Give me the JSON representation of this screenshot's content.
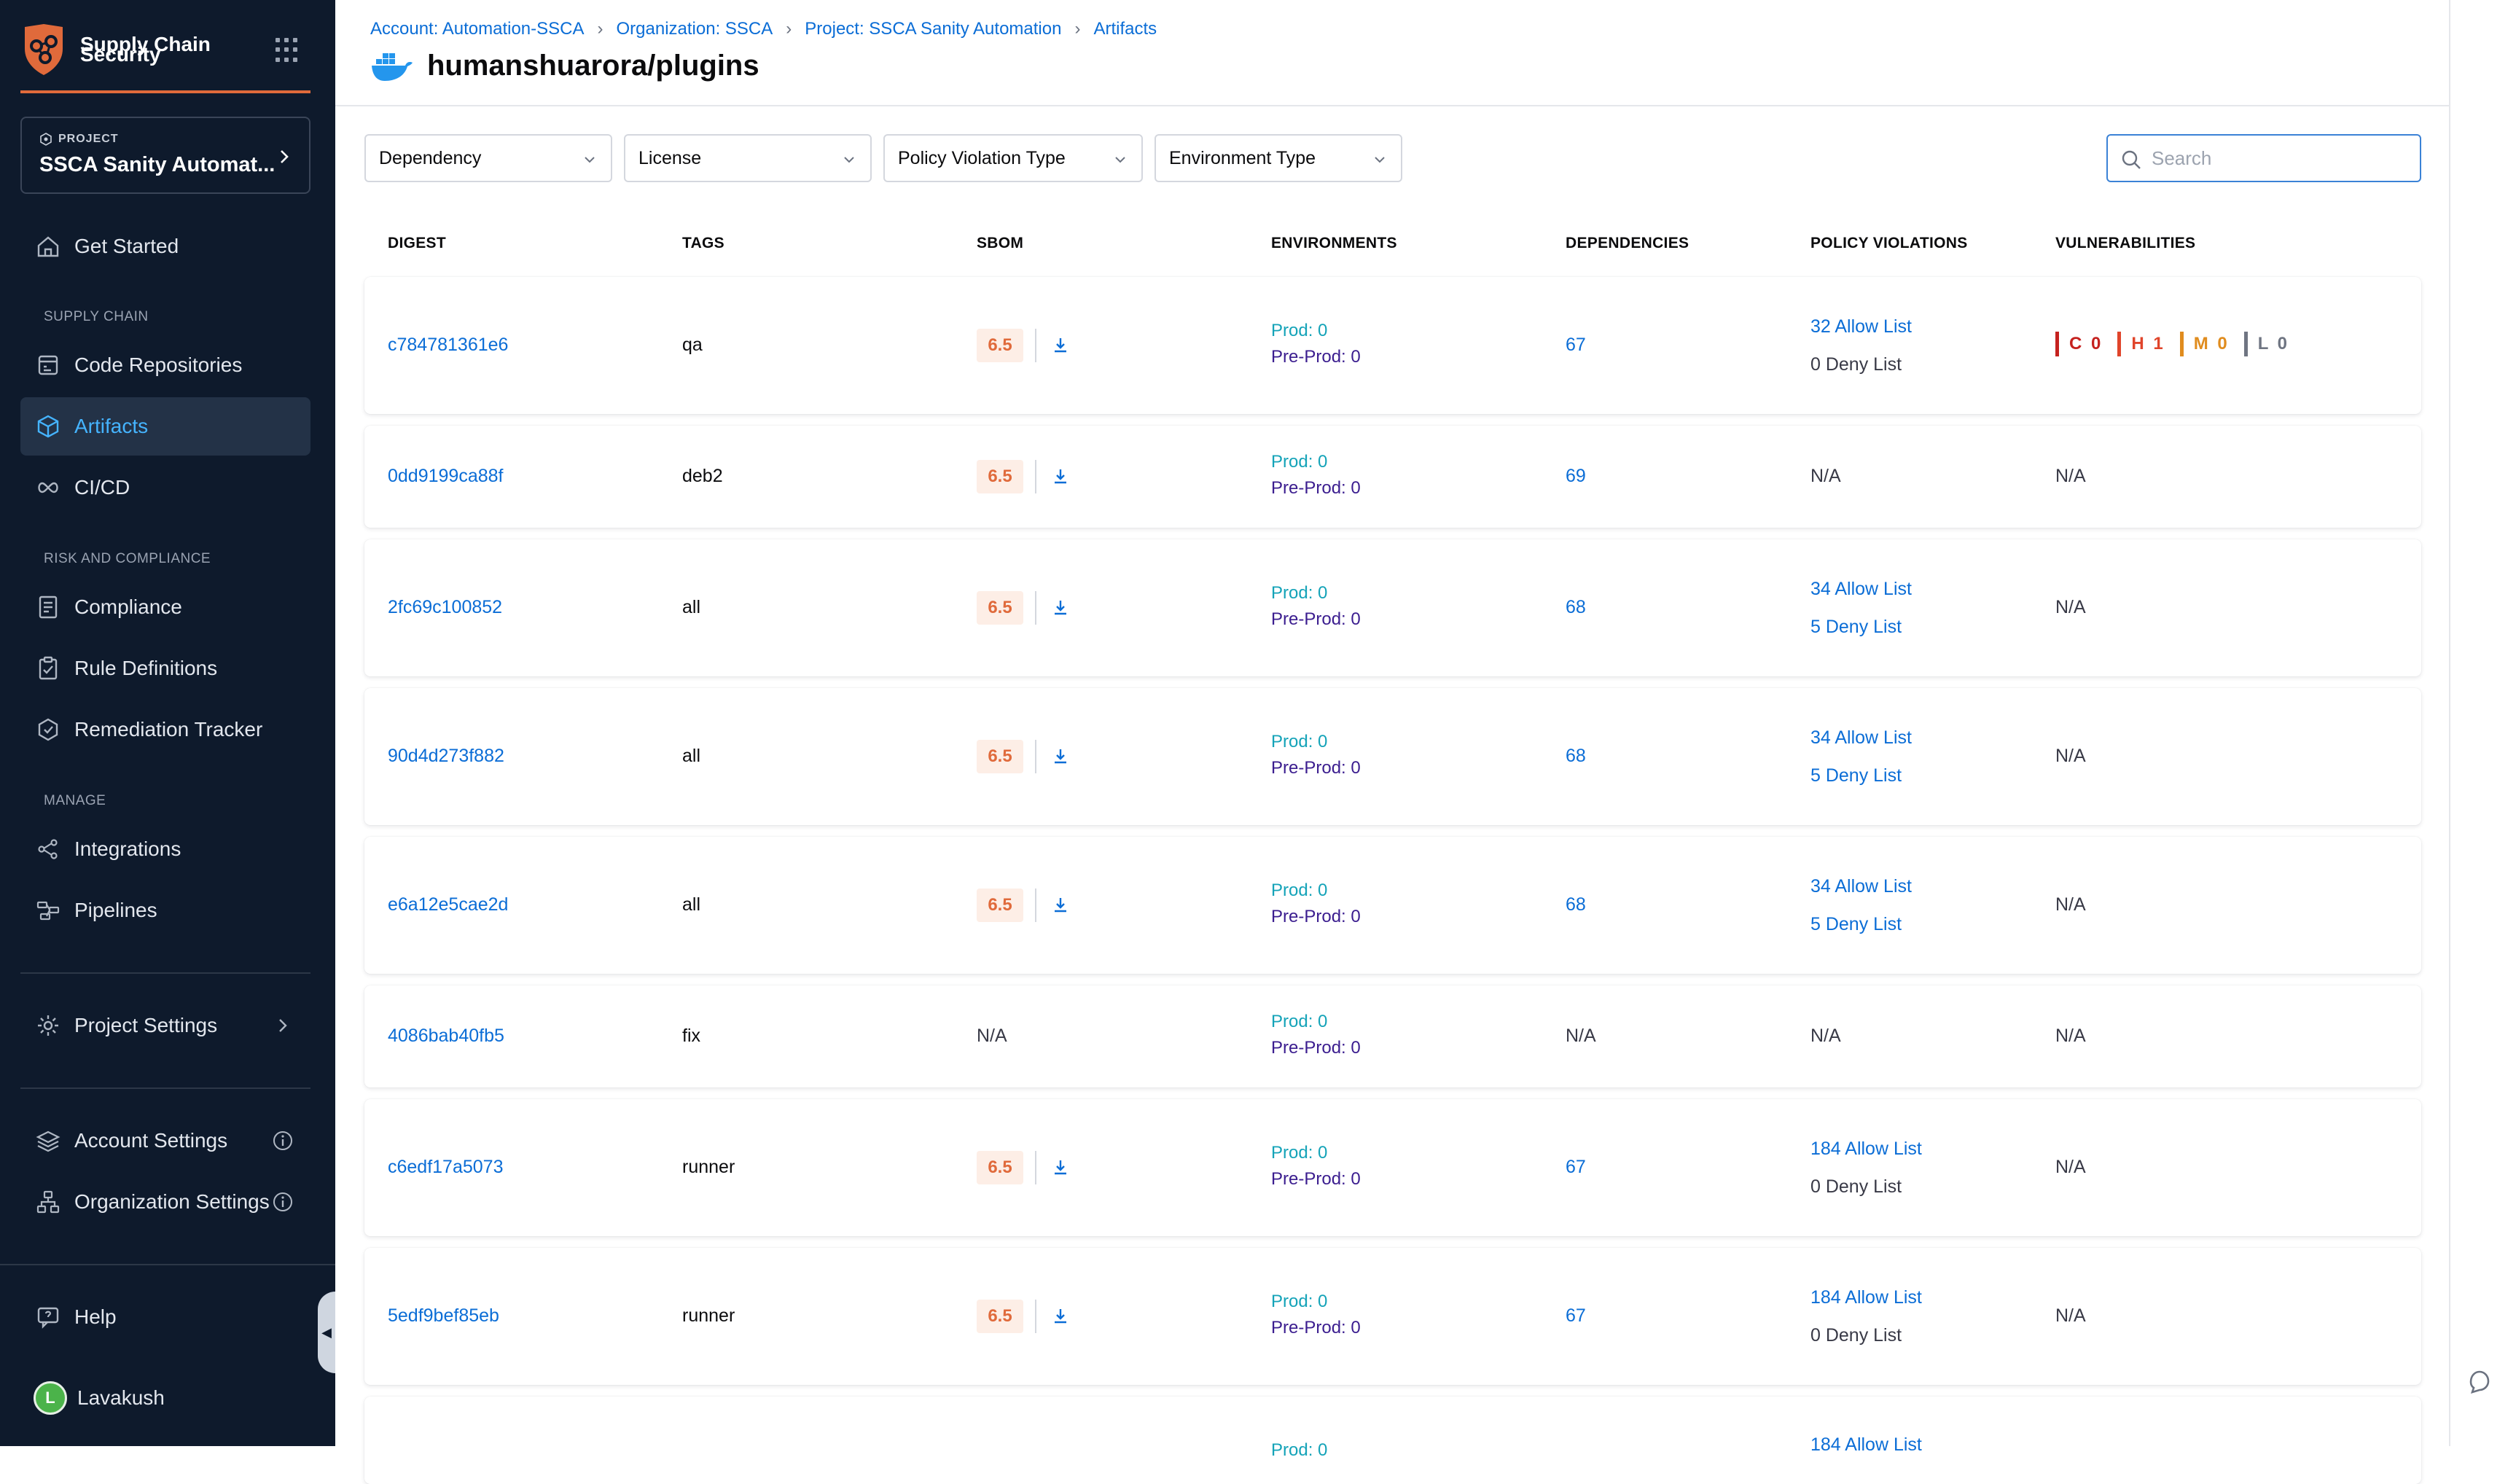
{
  "sidebar": {
    "brand": "Supply Chain\nSecurity",
    "brand_line1": "Supply Chain",
    "brand_line2": "Security",
    "project_kicker": "PROJECT",
    "project_name": "SSCA Sanity Automat...",
    "items": {
      "get_started": "Get Started",
      "section_supply": "SUPPLY CHAIN",
      "code_repos": "Code Repositories",
      "artifacts": "Artifacts",
      "cicd": "CI/CD",
      "section_risk": "RISK AND COMPLIANCE",
      "compliance": "Compliance",
      "rule_defs": "Rule Definitions",
      "remediation": "Remediation Tracker",
      "section_manage": "MANAGE",
      "integrations": "Integrations",
      "pipelines": "Pipelines",
      "project_settings": "Project Settings",
      "account_settings": "Account Settings",
      "org_settings": "Organization Settings",
      "help": "Help",
      "user_initial": "L",
      "user_name": "Lavakush"
    }
  },
  "breadcrumb": {
    "account": "Account: Automation-SSCA",
    "org": "Organization: SSCA",
    "project": "Project: SSCA Sanity Automation",
    "artifacts": "Artifacts"
  },
  "page_title": "humanshuarora/plugins",
  "filters": {
    "dependency": "Dependency",
    "license": "License",
    "policy": "Policy Violation Type",
    "environment": "Environment Type"
  },
  "search_placeholder": "Search",
  "columns": {
    "digest": "DIGEST",
    "tags": "TAGS",
    "sbom": "SBOM",
    "environments": "ENVIRONMENTS",
    "dependencies": "DEPENDENCIES",
    "policy": "POLICY VIOLATIONS",
    "vulns": "VULNERABILITIES"
  },
  "rows": [
    {
      "digest": "c784781361e6",
      "tag": "qa",
      "sbom": "6.5",
      "prod": "Prod: 0",
      "preprod": "Pre-Prod: 0",
      "deps": "67",
      "allow": "32 Allow List",
      "deny": "0 Deny List",
      "vuln": {
        "c": "C 0",
        "h": "H 1",
        "m": "M 0",
        "l": "L 0"
      }
    },
    {
      "digest": "0dd9199ca88f",
      "tag": "deb2",
      "sbom": "6.5",
      "prod": "Prod: 0",
      "preprod": "Pre-Prod: 0",
      "deps": "69",
      "policy_na": "N/A",
      "vuln_na": "N/A"
    },
    {
      "digest": "2fc69c100852",
      "tag": "all",
      "sbom": "6.5",
      "prod": "Prod: 0",
      "preprod": "Pre-Prod: 0",
      "deps": "68",
      "allow": "34 Allow List",
      "deny": "5 Deny List",
      "vuln_na": "N/A"
    },
    {
      "digest": "90d4d273f882",
      "tag": "all",
      "sbom": "6.5",
      "prod": "Prod: 0",
      "preprod": "Pre-Prod: 0",
      "deps": "68",
      "allow": "34 Allow List",
      "deny": "5 Deny List",
      "vuln_na": "N/A"
    },
    {
      "digest": "e6a12e5cae2d",
      "tag": "all",
      "sbom": "6.5",
      "prod": "Prod: 0",
      "preprod": "Pre-Prod: 0",
      "deps": "68",
      "allow": "34 Allow List",
      "deny": "5 Deny List",
      "vuln_na": "N/A"
    },
    {
      "digest": "4086bab40fb5",
      "tag": "fix",
      "sbom_na": "N/A",
      "prod": "Prod: 0",
      "preprod": "Pre-Prod: 0",
      "deps_na": "N/A",
      "policy_na": "N/A",
      "vuln_na": "N/A"
    },
    {
      "digest": "c6edf17a5073",
      "tag": "runner",
      "sbom": "6.5",
      "prod": "Prod: 0",
      "preprod": "Pre-Prod: 0",
      "deps": "67",
      "allow": "184 Allow List",
      "deny": "0 Deny List",
      "vuln_na": "N/A"
    },
    {
      "digest": "5edf9bef85eb",
      "tag": "runner",
      "sbom": "6.5",
      "prod": "Prod: 0",
      "preprod": "Pre-Prod: 0",
      "deps": "67",
      "allow": "184 Allow List",
      "deny": "0 Deny List",
      "vuln_na": "N/A"
    },
    {
      "allow": "184 Allow List",
      "prod": "Prod: 0"
    }
  ],
  "colors": {
    "sidebar_bg": "#0e1a2c",
    "accent_link": "#0b6dd6",
    "sbom_orange": "#e06a3b",
    "crit": "#c5221f",
    "high": "#e0452b",
    "med": "#e08c1e",
    "low": "#6f7582"
  }
}
